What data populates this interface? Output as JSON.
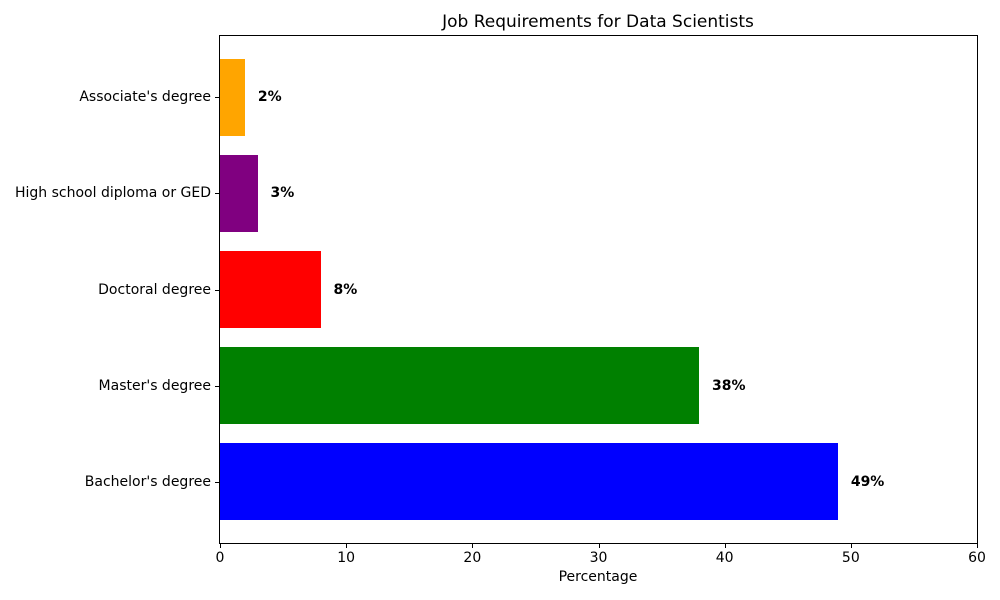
{
  "chart_data": {
    "type": "bar",
    "orientation": "horizontal",
    "title": "Job Requirements for Data Scientists",
    "xlabel": "Percentage",
    "ylabel": "",
    "categories": [
      "Associate's degree",
      "High school diploma or GED",
      "Doctoral degree",
      "Master's degree",
      "Bachelor's degree"
    ],
    "values": [
      2,
      3,
      8,
      38,
      49
    ],
    "value_labels": [
      "2%",
      "3%",
      "8%",
      "38%",
      "49%"
    ],
    "bar_colors": [
      "#FFA500",
      "#800080",
      "#FF0000",
      "#008000",
      "#0000FF"
    ],
    "xlim": [
      0,
      60
    ],
    "x_ticks": [
      0,
      10,
      20,
      30,
      40,
      50,
      60
    ],
    "grid": false,
    "legend": "none",
    "axis_color": "#000000",
    "background_color": "#FFFFFF"
  }
}
